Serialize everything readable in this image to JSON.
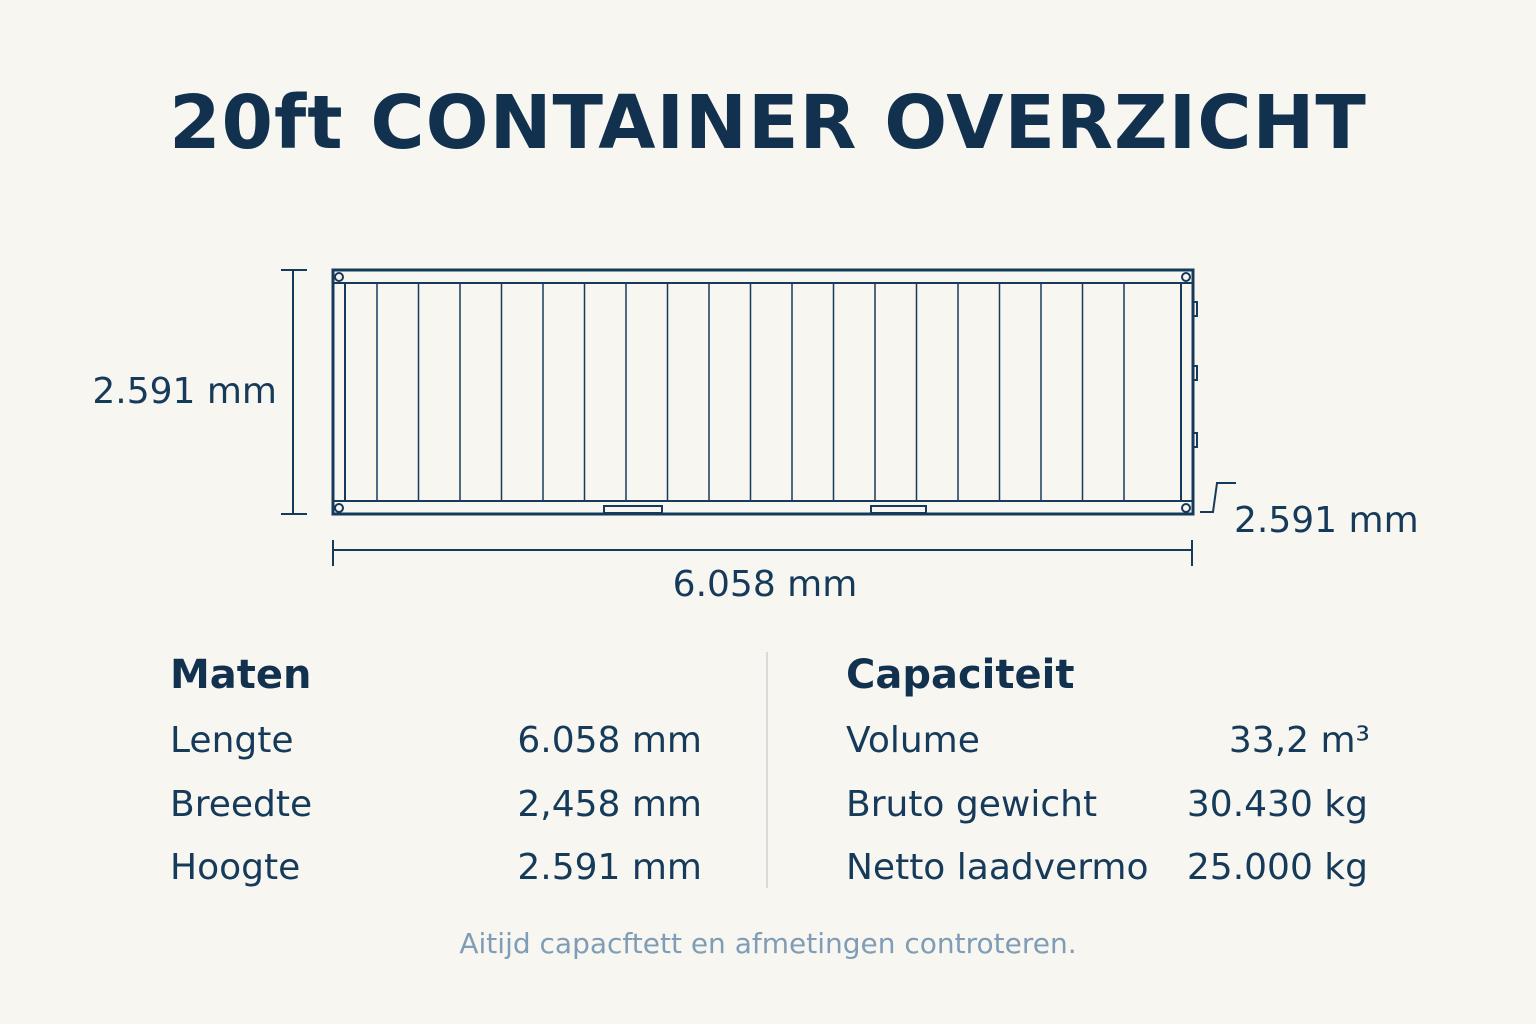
{
  "title": "20ft CONTAINER OVERZICHT",
  "diagram": {
    "height_left": "2.591 mm",
    "height_right": "2.591 mm",
    "length": "6.058 mm"
  },
  "sections": [
    {
      "heading": "Maten",
      "rows": [
        [
          "Lengte",
          "6.058 mm"
        ],
        [
          "Breedte",
          "2,458 mm"
        ],
        [
          "Hoogte",
          "2.591 mm"
        ]
      ]
    },
    {
      "heading": "Capaciteit",
      "rows": [
        [
          "Volume",
          "33,2 m³"
        ],
        [
          "Bruto gewicht",
          "30.430 kg"
        ],
        [
          "Netto laadvermo",
          "25.000 kg"
        ]
      ]
    }
  ],
  "footnote": "Aitijd capacftett en afmetingen controteren."
}
